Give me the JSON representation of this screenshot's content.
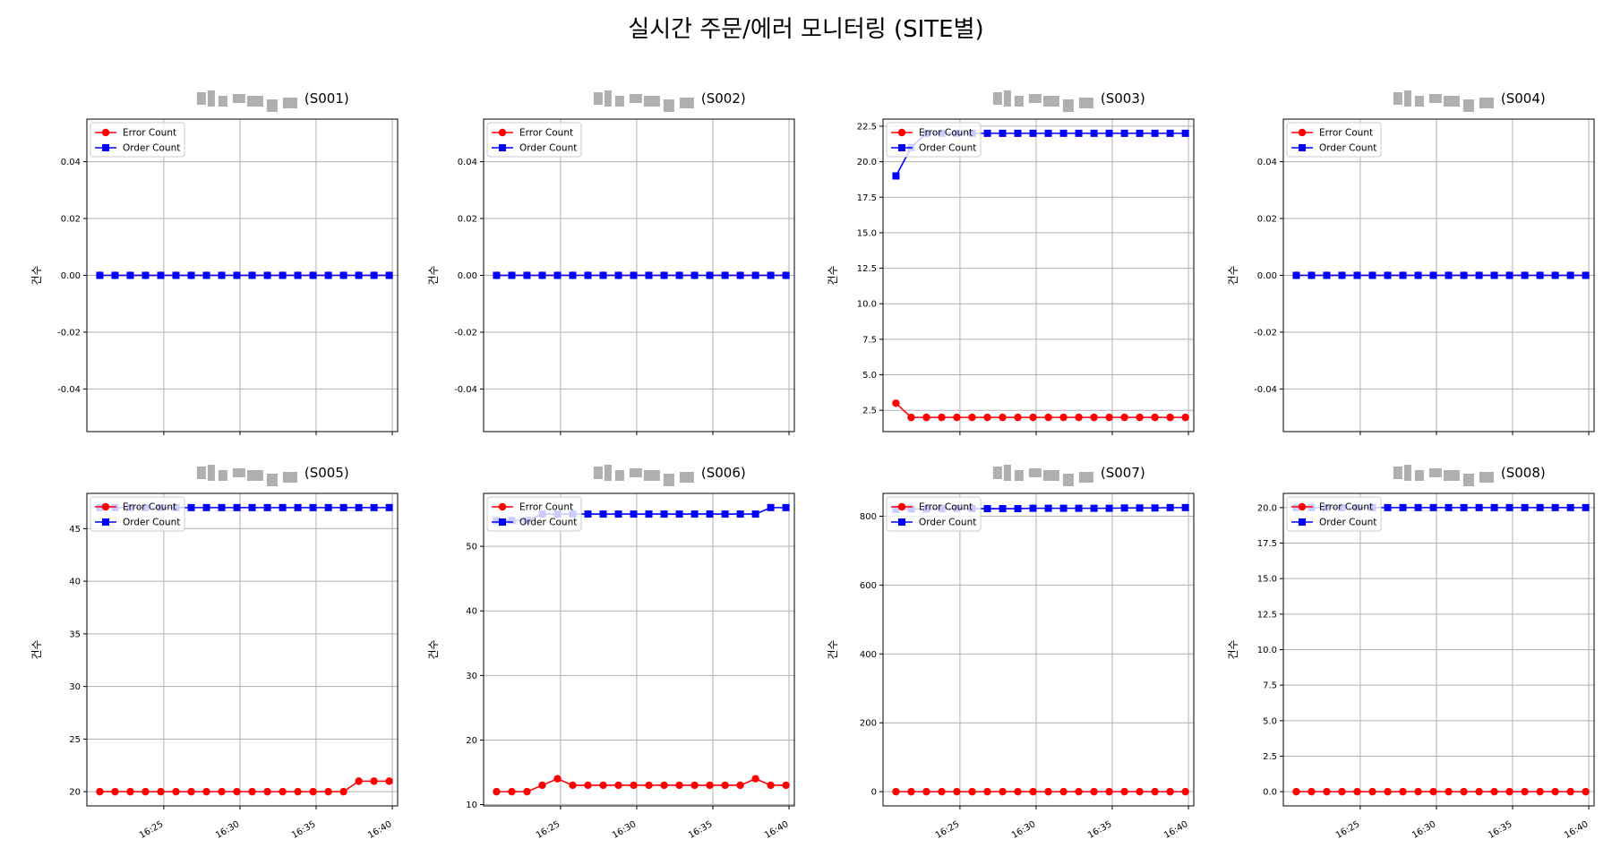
{
  "figure": {
    "title": "실시간 주문/에러 모니터링 (SITE별)"
  },
  "legend_labels": {
    "error": "Error Count",
    "order": "Order Count"
  },
  "colors": {
    "error": "#ff0000",
    "order": "#0000ff",
    "grid": "#b0b0b0"
  },
  "chart_data": [
    {
      "type": "line",
      "title": "(S001)",
      "ylabel": "건수",
      "ylim": [
        -0.055,
        0.055
      ],
      "yticks": [
        "-0.04",
        "-0.02",
        "0.00",
        "0.02",
        "0.04"
      ],
      "x": [
        "16:21",
        "16:22",
        "16:23",
        "16:24",
        "16:25",
        "16:26",
        "16:27",
        "16:28",
        "16:29",
        "16:30",
        "16:31",
        "16:32",
        "16:33",
        "16:34",
        "16:35",
        "16:36",
        "16:37",
        "16:38",
        "16:39",
        "16:40"
      ],
      "xticks": [],
      "grid": true,
      "legend": "upper-left",
      "series": [
        {
          "name": "Error Count",
          "values": [
            0,
            0,
            0,
            0,
            0,
            0,
            0,
            0,
            0,
            0,
            0,
            0,
            0,
            0,
            0,
            0,
            0,
            0,
            0,
            0
          ]
        },
        {
          "name": "Order Count",
          "values": [
            0,
            0,
            0,
            0,
            0,
            0,
            0,
            0,
            0,
            0,
            0,
            0,
            0,
            0,
            0,
            0,
            0,
            0,
            0,
            0
          ]
        }
      ]
    },
    {
      "type": "line",
      "title": "(S002)",
      "ylabel": "건수",
      "ylim": [
        -0.055,
        0.055
      ],
      "yticks": [
        "-0.04",
        "-0.02",
        "0.00",
        "0.02",
        "0.04"
      ],
      "x": [
        "16:21",
        "16:22",
        "16:23",
        "16:24",
        "16:25",
        "16:26",
        "16:27",
        "16:28",
        "16:29",
        "16:30",
        "16:31",
        "16:32",
        "16:33",
        "16:34",
        "16:35",
        "16:36",
        "16:37",
        "16:38",
        "16:39",
        "16:40"
      ],
      "xticks": [],
      "grid": true,
      "legend": "upper-left",
      "series": [
        {
          "name": "Error Count",
          "values": [
            0,
            0,
            0,
            0,
            0,
            0,
            0,
            0,
            0,
            0,
            0,
            0,
            0,
            0,
            0,
            0,
            0,
            0,
            0,
            0
          ]
        },
        {
          "name": "Order Count",
          "values": [
            0,
            0,
            0,
            0,
            0,
            0,
            0,
            0,
            0,
            0,
            0,
            0,
            0,
            0,
            0,
            0,
            0,
            0,
            0,
            0
          ]
        }
      ]
    },
    {
      "type": "line",
      "title": "(S003)",
      "ylabel": "건수",
      "ylim": [
        1.0,
        23.0
      ],
      "yticks": [
        "2.5",
        "5.0",
        "7.5",
        "10.0",
        "12.5",
        "15.0",
        "17.5",
        "20.0",
        "22.5"
      ],
      "x": [
        "16:21",
        "16:22",
        "16:23",
        "16:24",
        "16:25",
        "16:26",
        "16:27",
        "16:28",
        "16:29",
        "16:30",
        "16:31",
        "16:32",
        "16:33",
        "16:34",
        "16:35",
        "16:36",
        "16:37",
        "16:38",
        "16:39",
        "16:40"
      ],
      "xticks": [],
      "grid": true,
      "legend": "upper-left",
      "series": [
        {
          "name": "Error Count",
          "values": [
            3,
            2,
            2,
            2,
            2,
            2,
            2,
            2,
            2,
            2,
            2,
            2,
            2,
            2,
            2,
            2,
            2,
            2,
            2,
            2
          ]
        },
        {
          "name": "Order Count",
          "values": [
            19,
            21,
            22,
            22,
            22,
            22,
            22,
            22,
            22,
            22,
            22,
            22,
            22,
            22,
            22,
            22,
            22,
            22,
            22,
            22
          ]
        }
      ]
    },
    {
      "type": "line",
      "title": "(S004)",
      "ylabel": "건수",
      "ylim": [
        -0.055,
        0.055
      ],
      "yticks": [
        "-0.04",
        "-0.02",
        "0.00",
        "0.02",
        "0.04"
      ],
      "x": [
        "16:21",
        "16:22",
        "16:23",
        "16:24",
        "16:25",
        "16:26",
        "16:27",
        "16:28",
        "16:29",
        "16:30",
        "16:31",
        "16:32",
        "16:33",
        "16:34",
        "16:35",
        "16:36",
        "16:37",
        "16:38",
        "16:39",
        "16:40"
      ],
      "xticks": [],
      "grid": true,
      "legend": "upper-left",
      "series": [
        {
          "name": "Error Count",
          "values": [
            0,
            0,
            0,
            0,
            0,
            0,
            0,
            0,
            0,
            0,
            0,
            0,
            0,
            0,
            0,
            0,
            0,
            0,
            0,
            0
          ]
        },
        {
          "name": "Order Count",
          "values": [
            0,
            0,
            0,
            0,
            0,
            0,
            0,
            0,
            0,
            0,
            0,
            0,
            0,
            0,
            0,
            0,
            0,
            0,
            0,
            0
          ]
        }
      ]
    },
    {
      "type": "line",
      "title": "(S005)",
      "ylabel": "건수",
      "ylim": [
        18.65,
        48.35
      ],
      "yticks": [
        "20",
        "25",
        "30",
        "35",
        "40",
        "45"
      ],
      "x": [
        "16:21",
        "16:22",
        "16:23",
        "16:24",
        "16:25",
        "16:26",
        "16:27",
        "16:28",
        "16:29",
        "16:30",
        "16:31",
        "16:32",
        "16:33",
        "16:34",
        "16:35",
        "16:36",
        "16:37",
        "16:38",
        "16:39",
        "16:40"
      ],
      "xticks": [
        "16:25",
        "16:30",
        "16:35",
        "16:40"
      ],
      "grid": true,
      "legend": "upper-left",
      "series": [
        {
          "name": "Error Count",
          "values": [
            20,
            20,
            20,
            20,
            20,
            20,
            20,
            20,
            20,
            20,
            20,
            20,
            20,
            20,
            20,
            20,
            20,
            21,
            21,
            21
          ]
        },
        {
          "name": "Order Count",
          "values": [
            47,
            47,
            47,
            47,
            47,
            47,
            47,
            47,
            47,
            47,
            47,
            47,
            47,
            47,
            47,
            47,
            47,
            47,
            47,
            47
          ]
        }
      ]
    },
    {
      "type": "line",
      "title": "(S006)",
      "ylabel": "건수",
      "ylim": [
        9.8,
        58.2
      ],
      "yticks": [
        "10",
        "20",
        "30",
        "40",
        "50"
      ],
      "x": [
        "16:21",
        "16:22",
        "16:23",
        "16:24",
        "16:25",
        "16:26",
        "16:27",
        "16:28",
        "16:29",
        "16:30",
        "16:31",
        "16:32",
        "16:33",
        "16:34",
        "16:35",
        "16:36",
        "16:37",
        "16:38",
        "16:39",
        "16:40"
      ],
      "xticks": [
        "16:25",
        "16:30",
        "16:35",
        "16:40"
      ],
      "grid": true,
      "legend": "upper-left",
      "series": [
        {
          "name": "Error Count",
          "values": [
            12,
            12,
            12,
            13,
            14,
            13,
            13,
            13,
            13,
            13,
            13,
            13,
            13,
            13,
            13,
            13,
            13,
            14,
            13,
            13
          ]
        },
        {
          "name": "Order Count",
          "values": [
            54,
            54,
            54,
            55,
            55,
            55,
            55,
            55,
            55,
            55,
            55,
            55,
            55,
            55,
            55,
            55,
            55,
            55,
            56,
            56
          ]
        }
      ]
    },
    {
      "type": "line",
      "title": "(S007)",
      "ylabel": "건수",
      "ylim": [
        -41.25,
        866.25
      ],
      "yticks": [
        "0",
        "200",
        "400",
        "600",
        "800"
      ],
      "x": [
        "16:21",
        "16:22",
        "16:23",
        "16:24",
        "16:25",
        "16:26",
        "16:27",
        "16:28",
        "16:29",
        "16:30",
        "16:31",
        "16:32",
        "16:33",
        "16:34",
        "16:35",
        "16:36",
        "16:37",
        "16:38",
        "16:39",
        "16:40"
      ],
      "xticks": [
        "16:25",
        "16:30",
        "16:35",
        "16:40"
      ],
      "grid": true,
      "legend": "upper-left",
      "series": [
        {
          "name": "Error Count",
          "values": [
            0,
            0,
            0,
            0,
            0,
            0,
            0,
            0,
            0,
            0,
            0,
            0,
            0,
            0,
            0,
            0,
            0,
            0,
            0,
            0
          ]
        },
        {
          "name": "Order Count",
          "values": [
            820,
            821,
            821,
            822,
            822,
            822,
            822,
            822,
            822,
            823,
            823,
            823,
            823,
            823,
            823,
            824,
            824,
            824,
            825,
            825
          ]
        }
      ]
    },
    {
      "type": "line",
      "title": "(S008)",
      "ylabel": "건수",
      "ylim": [
        -1.0,
        21.0
      ],
      "yticks": [
        "0.0",
        "2.5",
        "5.0",
        "7.5",
        "10.0",
        "12.5",
        "15.0",
        "17.5",
        "20.0"
      ],
      "x": [
        "16:21",
        "16:22",
        "16:23",
        "16:24",
        "16:25",
        "16:26",
        "16:27",
        "16:28",
        "16:29",
        "16:30",
        "16:31",
        "16:32",
        "16:33",
        "16:34",
        "16:35",
        "16:36",
        "16:37",
        "16:38",
        "16:39",
        "16:40"
      ],
      "xticks": [
        "16:25",
        "16:30",
        "16:35",
        "16:40"
      ],
      "grid": true,
      "legend": "upper-left",
      "series": [
        {
          "name": "Error Count",
          "values": [
            0,
            0,
            0,
            0,
            0,
            0,
            0,
            0,
            0,
            0,
            0,
            0,
            0,
            0,
            0,
            0,
            0,
            0,
            0,
            0
          ]
        },
        {
          "name": "Order Count",
          "values": [
            20,
            20,
            20,
            20,
            20,
            20,
            20,
            20,
            20,
            20,
            20,
            20,
            20,
            20,
            20,
            20,
            20,
            20,
            20,
            20
          ]
        }
      ]
    }
  ]
}
